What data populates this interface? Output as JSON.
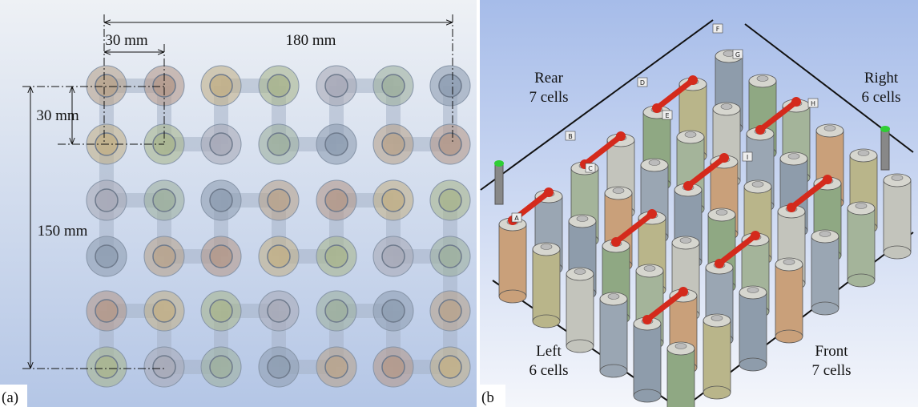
{
  "panel_a": {
    "label": "(a)",
    "dimensions": {
      "width": "180 mm",
      "pitch_x": "30 mm",
      "pitch_y": "30 mm",
      "height": "150 mm"
    }
  },
  "panel_b": {
    "label": "(b",
    "sides": [
      {
        "name": "Rear",
        "cells": "7 cells"
      },
      {
        "name": "Right",
        "cells": "6 cells"
      },
      {
        "name": "Left",
        "cells": "6 cells"
      },
      {
        "name": "Front",
        "cells": "7 cells"
      }
    ],
    "tags": [
      "A",
      "B",
      "C",
      "D",
      "E",
      "F",
      "G",
      "H",
      "I"
    ]
  }
}
